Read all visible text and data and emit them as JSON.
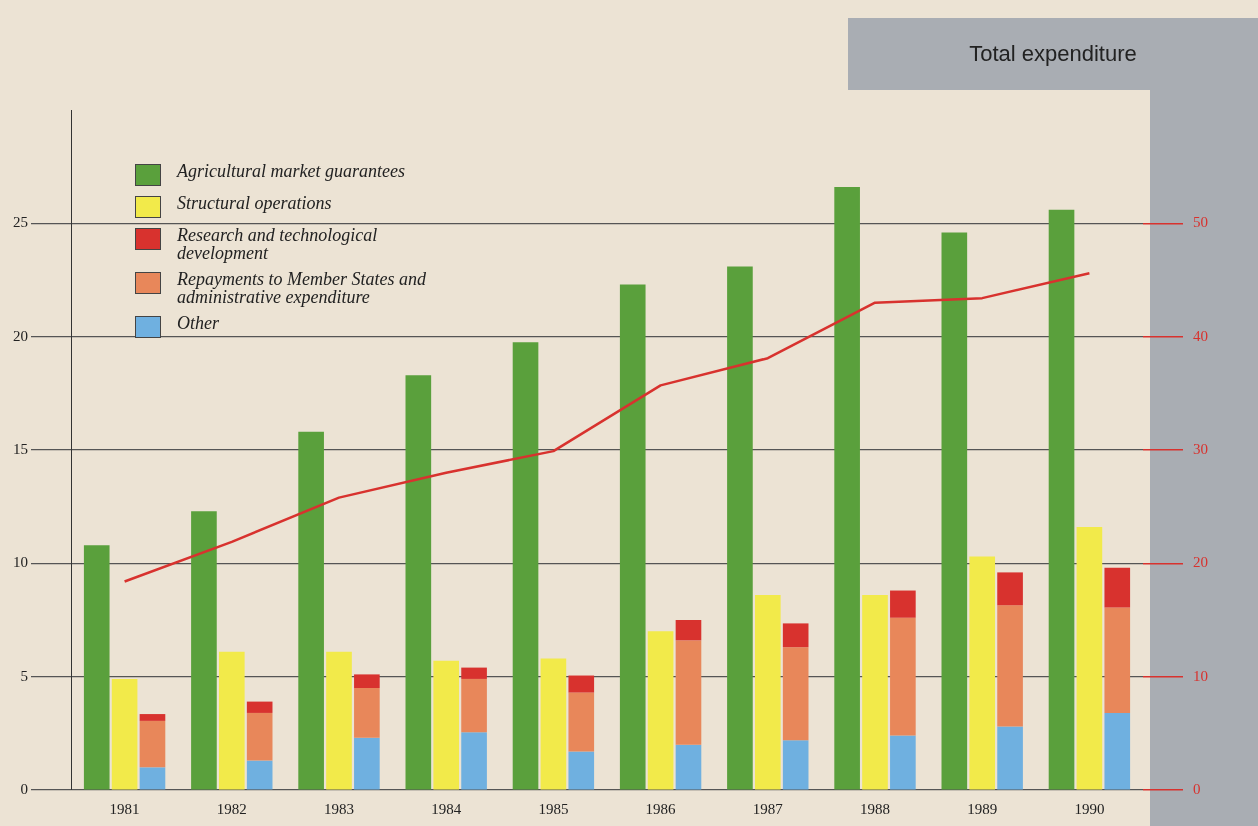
{
  "chart_data": {
    "type": "bar",
    "y2label": "Total expenditure",
    "categories": [
      "1981",
      "1982",
      "1983",
      "1984",
      "1985",
      "1986",
      "1987",
      "1988",
      "1989",
      "1990"
    ],
    "series": [
      {
        "name": "Agricultural market guarantees",
        "color": "#5aa03c",
        "values": [
          10.8,
          12.3,
          15.8,
          18.3,
          19.75,
          22.3,
          23.1,
          26.6,
          24.6,
          25.6
        ]
      },
      {
        "name": "Structural operations",
        "color": "#f2ea4a",
        "values": [
          4.9,
          6.1,
          6.1,
          5.7,
          5.8,
          7.0,
          8.6,
          8.6,
          10.3,
          11.6
        ]
      },
      {
        "name": "Research and technological development",
        "color": "#d8322e",
        "base": [
          3.05,
          3.4,
          4.5,
          4.9,
          4.3,
          6.6,
          6.3,
          7.6,
          8.15,
          8.05
        ],
        "values": [
          0.3,
          0.5,
          0.6,
          0.5,
          0.75,
          0.9,
          1.05,
          1.2,
          1.45,
          1.75
        ]
      },
      {
        "name": "Repayments to Member States and administrative expenditure",
        "color": "#e8875a",
        "base": [
          1.0,
          1.3,
          2.3,
          2.55,
          1.7,
          2.0,
          2.2,
          2.4,
          2.8,
          3.4
        ],
        "values": [
          2.05,
          2.1,
          2.2,
          2.35,
          2.6,
          4.6,
          4.1,
          5.2,
          5.35,
          4.65
        ]
      },
      {
        "name": "Other",
        "color": "#6fb0e0",
        "base": [
          0,
          0,
          0,
          0,
          0,
          0,
          0,
          0,
          0,
          0
        ],
        "values": [
          1.0,
          1.3,
          2.3,
          2.55,
          1.7,
          2.0,
          2.2,
          2.4,
          2.8,
          3.4
        ]
      },
      {
        "type": "line",
        "axis": "y2",
        "color": "#d8322e",
        "values": [
          18.4,
          21.9,
          25.8,
          28.0,
          29.9,
          35.7,
          38.1,
          43.0,
          43.4,
          45.6
        ]
      }
    ],
    "ylim": [
      0,
      30
    ],
    "yticks": [
      0,
      5,
      10,
      15,
      20,
      25
    ],
    "y2lim": [
      0,
      60
    ],
    "y2ticks": [
      0,
      10,
      20,
      30,
      40,
      50
    ],
    "grid": "y",
    "legend": "top left",
    "marker": "none",
    "line_style": "solid"
  }
}
